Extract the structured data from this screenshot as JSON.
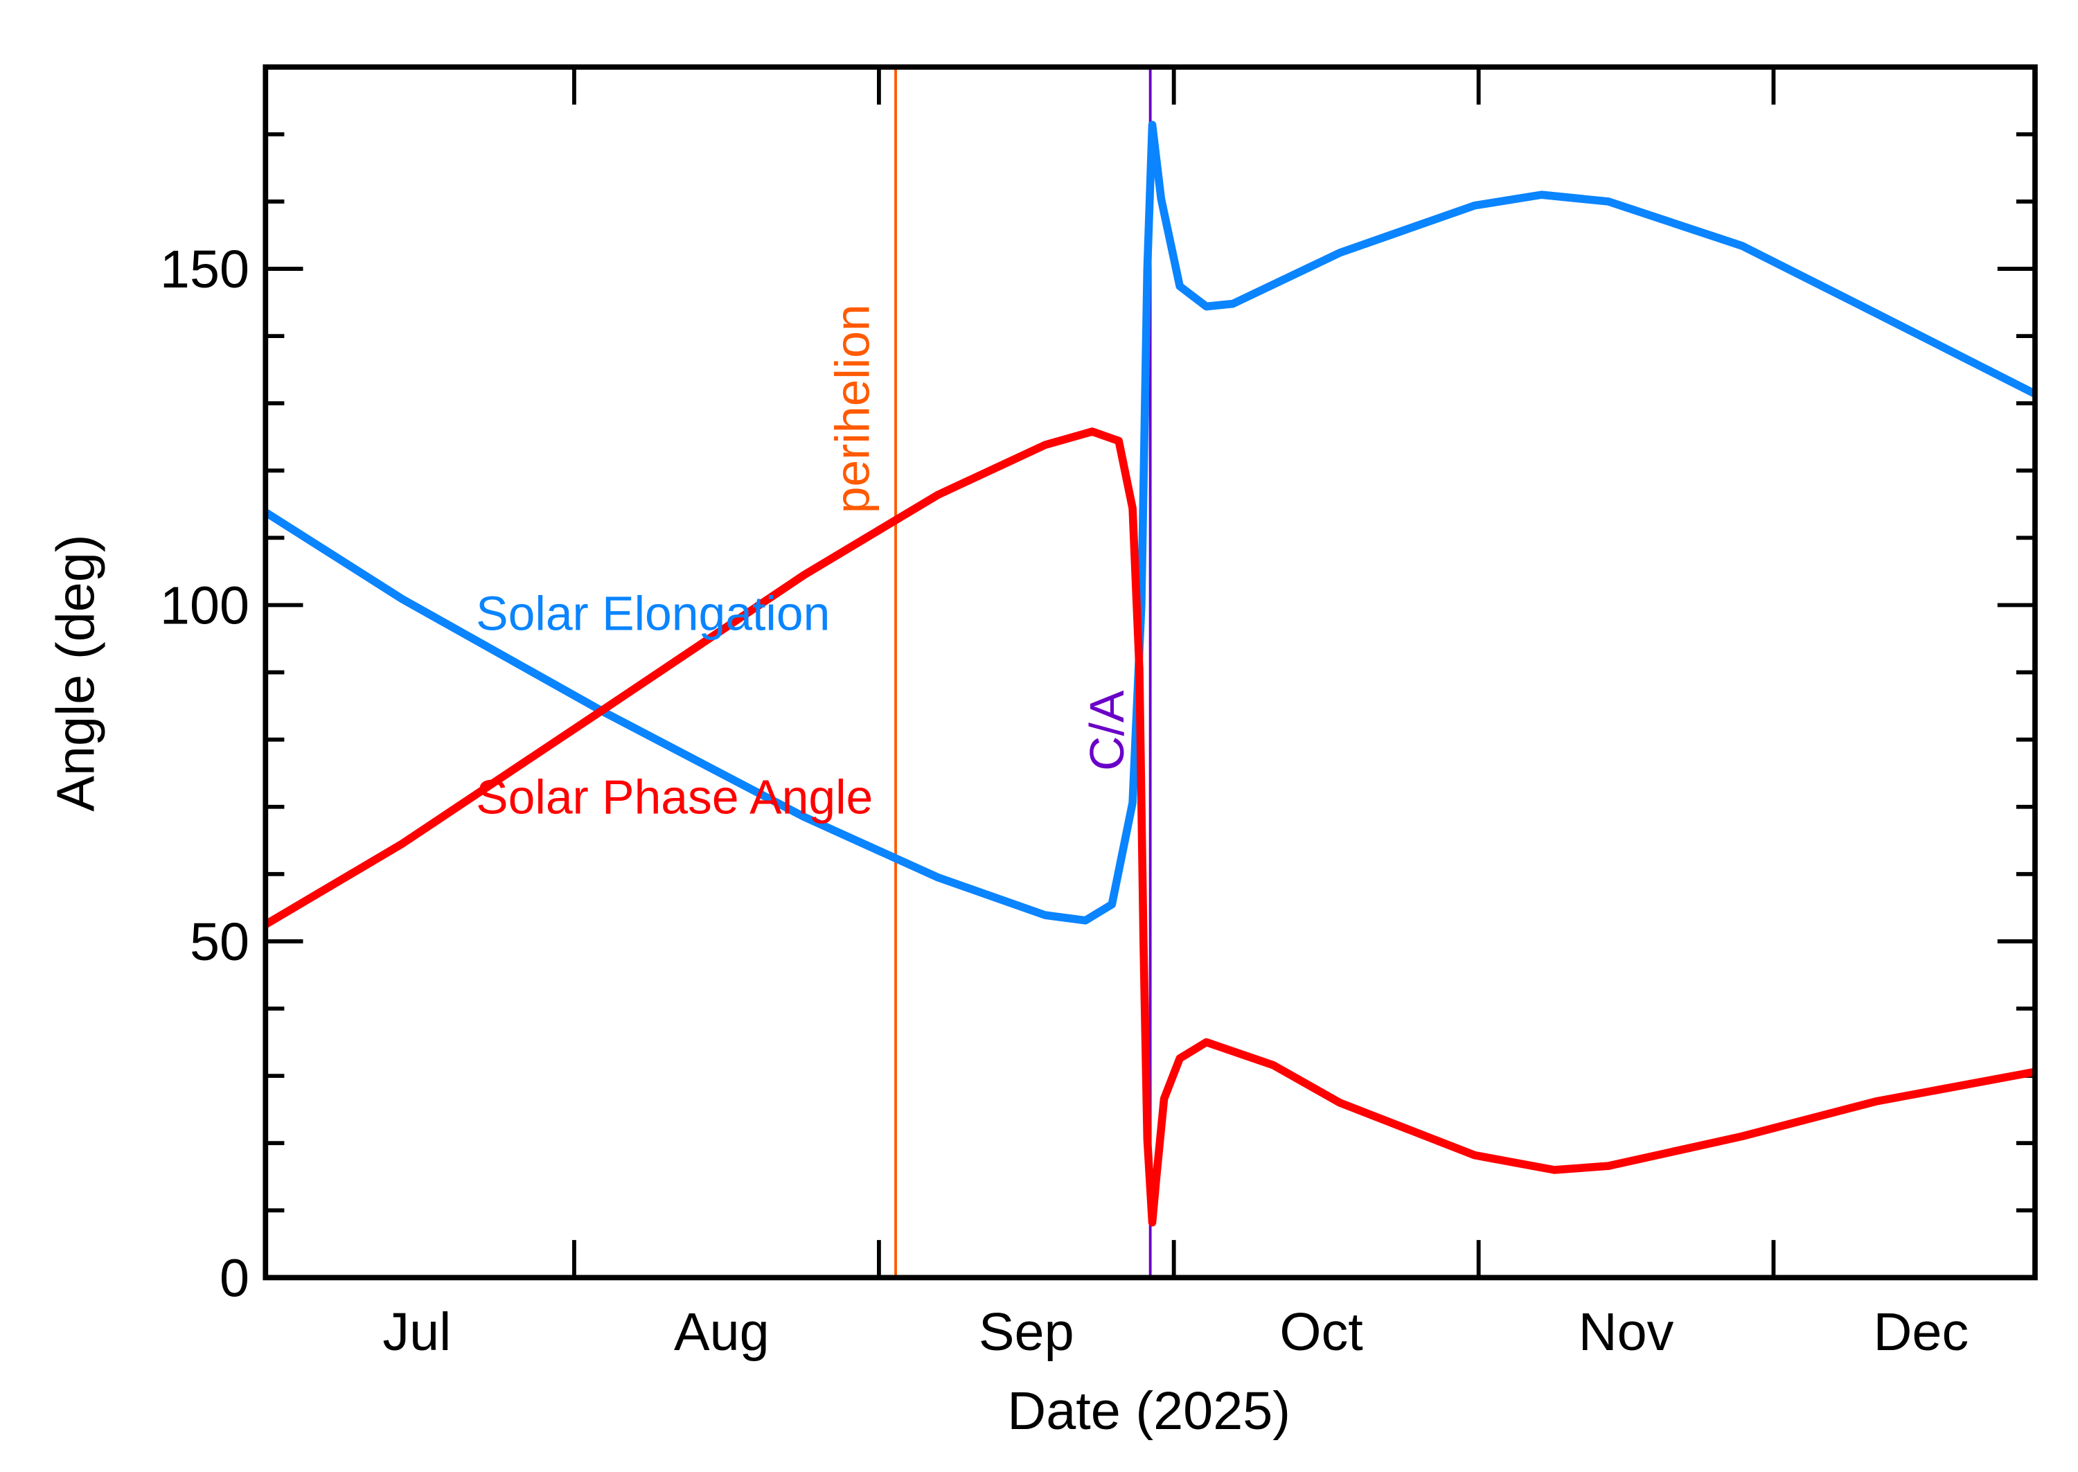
{
  "chart_data": {
    "type": "line",
    "xlabel": "Date (2025)",
    "ylabel": "Angle (deg)",
    "xlim": [
      181.6,
      361.6
    ],
    "ylim": [
      0,
      180
    ],
    "xticks": [
      {
        "value": 197,
        "label": "Jul"
      },
      {
        "value": 228,
        "label": "Aug"
      },
      {
        "value": 259,
        "label": "Sep"
      },
      {
        "value": 289,
        "label": "Oct"
      },
      {
        "value": 320,
        "label": "Nov"
      },
      {
        "value": 350,
        "label": "Dec"
      }
    ],
    "xtick_marks": [
      213,
      244,
      274,
      305,
      335
    ],
    "yticks": [
      0,
      50,
      100,
      150
    ],
    "yminor_ticks": [
      10,
      20,
      30,
      40,
      60,
      70,
      80,
      90,
      110,
      120,
      130,
      140,
      160,
      170
    ],
    "vlines": [
      {
        "label": "perihelion",
        "x": 245.7,
        "color": "#ff5a00"
      },
      {
        "label": "C/A",
        "x": 271.6,
        "color": "#6a00c8"
      }
    ],
    "series": [
      {
        "name": "Solar Elongation",
        "color": "#0a84ff",
        "x": [
          181.6,
          195.5,
          216.0,
          236.4,
          250.0,
          260.9,
          265.0,
          267.7,
          269.8,
          270.7,
          271.3,
          271.8,
          272.7,
          274.6,
          277.3,
          280.0,
          290.9,
          304.6,
          311.4,
          318.2,
          331.8,
          345.4,
          361.6
        ],
        "values": [
          113.8,
          100.9,
          84.1,
          68.5,
          59.5,
          53.9,
          53.1,
          55.5,
          70.6,
          100,
          150,
          171.4,
          160.4,
          147.4,
          144.4,
          144.8,
          152.4,
          159.4,
          161,
          160,
          153.4,
          143.4,
          131.4
        ]
      },
      {
        "name": "Solar Phase Angle",
        "color": "#ff0000",
        "x": [
          181.6,
          195.5,
          216.0,
          236.4,
          250.0,
          260.9,
          265.7,
          268.4,
          269.8,
          270.5,
          270.9,
          271.3,
          271.8,
          272.2,
          273.0,
          274.6,
          277.3,
          284.1,
          290.9,
          304.6,
          312.7,
          318.2,
          331.8,
          345.4,
          361.6
        ],
        "values": [
          52.5,
          64.5,
          84.5,
          104.5,
          116.4,
          123.8,
          125.8,
          124.4,
          114.4,
          90.5,
          50.5,
          20.6,
          8.2,
          14.6,
          26.6,
          32.6,
          35.0,
          31.6,
          26.0,
          18.2,
          16.0,
          16.6,
          21.0,
          26.2,
          30.6
        ]
      }
    ]
  }
}
